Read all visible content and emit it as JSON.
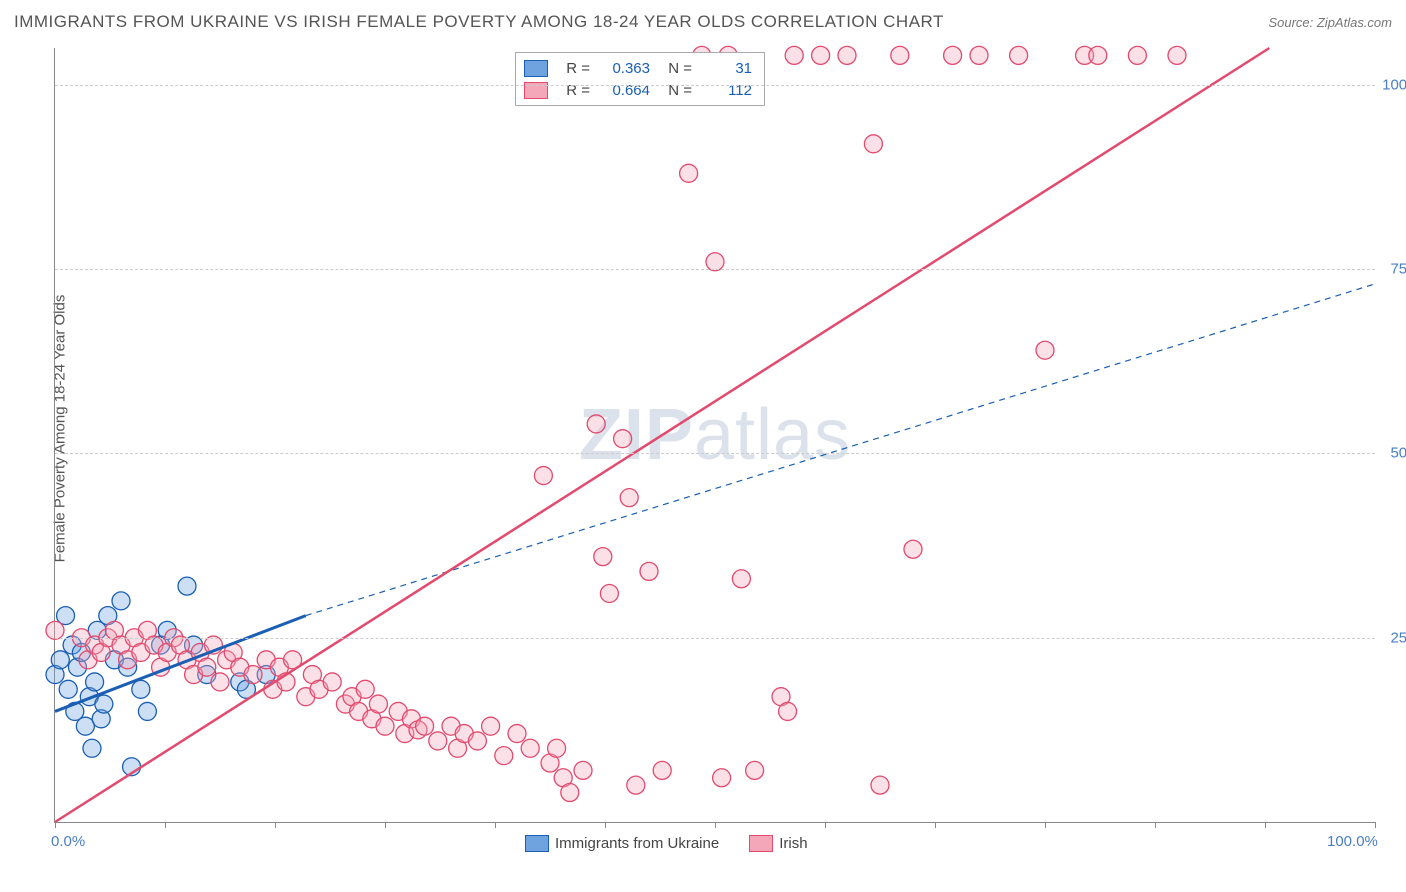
{
  "title": "IMMIGRANTS FROM UKRAINE VS IRISH FEMALE POVERTY AMONG 18-24 YEAR OLDS CORRELATION CHART",
  "source_label": "Source: ",
  "source_name": "ZipAtlas.com",
  "y_axis_label": "Female Poverty Among 18-24 Year Olds",
  "watermark": "ZIPatlas",
  "chart": {
    "type": "scatter",
    "xlim": [
      0,
      100
    ],
    "ylim": [
      0,
      105
    ],
    "x_ticks": [
      0,
      8.3,
      16.7,
      25,
      33.3,
      41.7,
      50,
      58.3,
      66.7,
      75,
      83.3,
      91.7,
      100
    ],
    "x_tick_labels": {
      "0": "0.0%",
      "100": "100.0%"
    },
    "y_gridlines": [
      25,
      50,
      75,
      100
    ],
    "y_tick_labels": {
      "25": "25.0%",
      "50": "50.0%",
      "75": "75.0%",
      "100": "100.0%"
    },
    "background_color": "#ffffff",
    "grid_color": "#cccccc",
    "marker_radius": 9,
    "marker_fill_opacity": 0.35,
    "marker_stroke_width": 1.3,
    "series": [
      {
        "name": "Immigrants from Ukraine",
        "color_fill": "#6fa3e0",
        "color_stroke": "#1a5fb4",
        "R": "0.363",
        "N": "31",
        "trend": {
          "x1": 0,
          "y1": 15,
          "x2": 19,
          "y2": 28,
          "style": "solid",
          "width": 3,
          "color": "#1a5fb4",
          "extend": {
            "x2": 100,
            "y2": 73,
            "style": "dashed",
            "width": 1.2
          }
        },
        "points": [
          [
            0,
            20
          ],
          [
            0.4,
            22
          ],
          [
            0.8,
            28
          ],
          [
            1,
            18
          ],
          [
            1.3,
            24
          ],
          [
            1.5,
            15
          ],
          [
            1.7,
            21
          ],
          [
            2,
            23
          ],
          [
            2.3,
            13
          ],
          [
            2.6,
            17
          ],
          [
            2.8,
            10
          ],
          [
            3,
            19
          ],
          [
            3.2,
            26
          ],
          [
            3.5,
            14
          ],
          [
            3.7,
            16
          ],
          [
            4,
            28
          ],
          [
            4.5,
            22
          ],
          [
            5,
            30
          ],
          [
            5.5,
            21
          ],
          [
            5.8,
            7.5
          ],
          [
            6.5,
            18
          ],
          [
            7,
            15
          ],
          [
            8,
            24
          ],
          [
            8.5,
            26
          ],
          [
            10,
            32
          ],
          [
            10.5,
            24
          ],
          [
            11.5,
            20
          ],
          [
            14,
            19
          ],
          [
            14.5,
            18
          ],
          [
            16,
            20
          ]
        ]
      },
      {
        "name": "Irish",
        "color_fill": "#f4a7b9",
        "color_stroke": "#e24a6e",
        "R": "0.664",
        "N": "112",
        "trend": {
          "x1": 0,
          "y1": 0,
          "x2": 92,
          "y2": 105,
          "style": "solid",
          "width": 2.5,
          "color": "#e24a6e"
        },
        "points": [
          [
            0,
            26
          ],
          [
            2,
            25
          ],
          [
            2.5,
            22
          ],
          [
            3,
            24
          ],
          [
            3.5,
            23
          ],
          [
            4,
            25
          ],
          [
            4.5,
            26
          ],
          [
            5,
            24
          ],
          [
            5.5,
            22
          ],
          [
            6,
            25
          ],
          [
            6.5,
            23
          ],
          [
            7,
            26
          ],
          [
            7.5,
            24
          ],
          [
            8,
            21
          ],
          [
            8.5,
            23
          ],
          [
            9,
            25
          ],
          [
            9.5,
            24
          ],
          [
            10,
            22
          ],
          [
            10.5,
            20
          ],
          [
            11,
            23
          ],
          [
            11.5,
            21
          ],
          [
            12,
            24
          ],
          [
            12.5,
            19
          ],
          [
            13,
            22
          ],
          [
            13.5,
            23
          ],
          [
            14,
            21
          ],
          [
            15,
            20
          ],
          [
            16,
            22
          ],
          [
            16.5,
            18
          ],
          [
            17,
            21
          ],
          [
            17.5,
            19
          ],
          [
            18,
            22
          ],
          [
            19,
            17
          ],
          [
            19.5,
            20
          ],
          [
            20,
            18
          ],
          [
            21,
            19
          ],
          [
            22,
            16
          ],
          [
            22.5,
            17
          ],
          [
            23,
            15
          ],
          [
            23.5,
            18
          ],
          [
            24,
            14
          ],
          [
            24.5,
            16
          ],
          [
            25,
            13
          ],
          [
            26,
            15
          ],
          [
            26.5,
            12
          ],
          [
            27,
            14
          ],
          [
            27.5,
            12.5
          ],
          [
            28,
            13
          ],
          [
            29,
            11
          ],
          [
            30,
            13
          ],
          [
            30.5,
            10
          ],
          [
            31,
            12
          ],
          [
            32,
            11
          ],
          [
            33,
            13
          ],
          [
            34,
            9
          ],
          [
            35,
            12
          ],
          [
            36,
            10
          ],
          [
            37,
            47
          ],
          [
            37.5,
            8
          ],
          [
            38,
            10
          ],
          [
            38.5,
            6
          ],
          [
            39,
            4
          ],
          [
            40,
            7
          ],
          [
            41,
            54
          ],
          [
            41.5,
            36
          ],
          [
            42,
            31
          ],
          [
            43,
            52
          ],
          [
            43.5,
            44
          ],
          [
            44,
            5
          ],
          [
            45,
            34
          ],
          [
            46,
            7
          ],
          [
            48,
            88
          ],
          [
            49,
            104
          ],
          [
            50,
            76
          ],
          [
            50.5,
            6
          ],
          [
            51,
            104
          ],
          [
            52,
            33
          ],
          [
            53,
            7
          ],
          [
            55,
            17
          ],
          [
            55.5,
            15
          ],
          [
            56,
            104
          ],
          [
            58,
            104
          ],
          [
            60,
            104
          ],
          [
            62,
            92
          ],
          [
            62.5,
            5
          ],
          [
            64,
            104
          ],
          [
            65,
            37
          ],
          [
            68,
            104
          ],
          [
            70,
            104
          ],
          [
            73,
            104
          ],
          [
            75,
            64
          ],
          [
            78,
            104
          ],
          [
            79,
            104
          ],
          [
            82,
            104
          ],
          [
            85,
            104
          ]
        ]
      }
    ],
    "bottom_legend": [
      {
        "label": "Immigrants from Ukraine",
        "fill": "#6fa3e0",
        "stroke": "#1a5fb4"
      },
      {
        "label": "Irish",
        "fill": "#f4a7b9",
        "stroke": "#e24a6e"
      }
    ]
  }
}
